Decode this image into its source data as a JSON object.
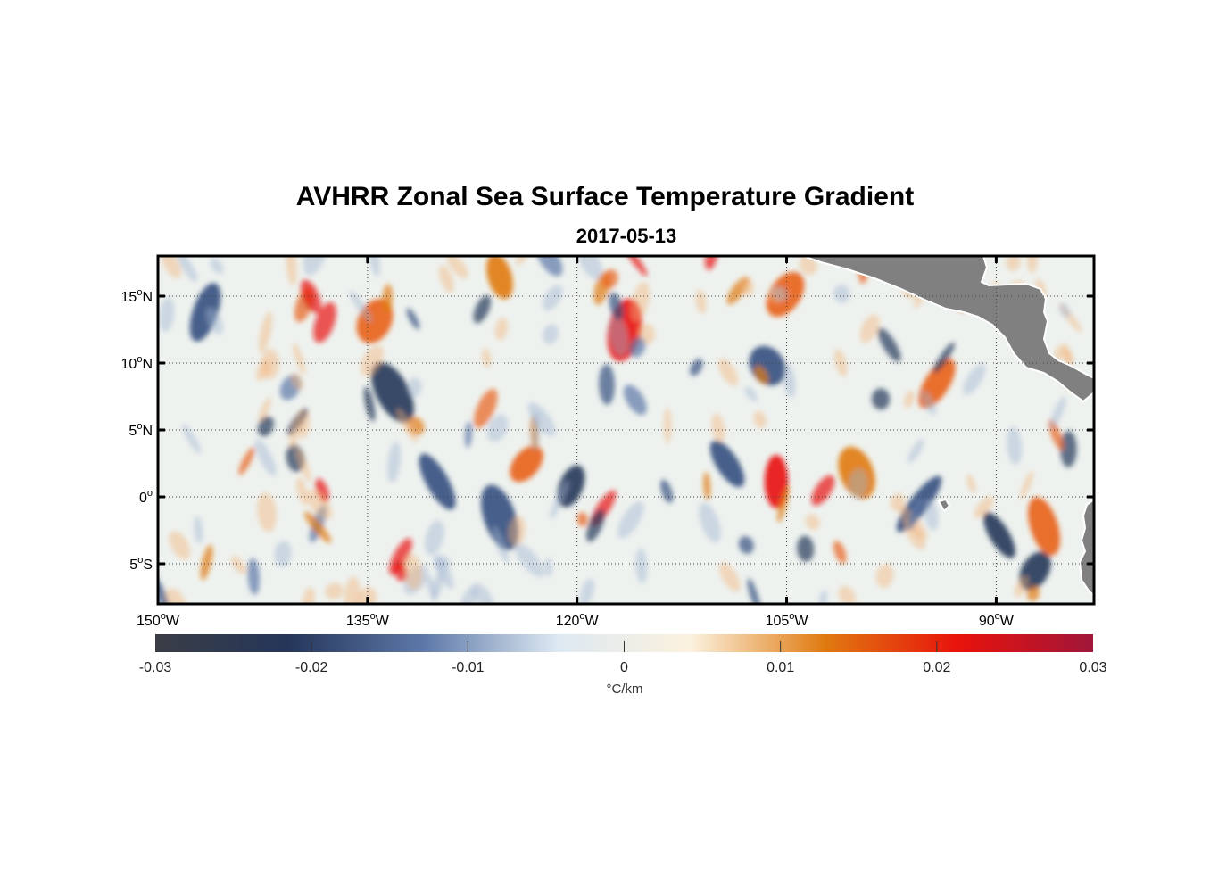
{
  "title": "AVHRR Zonal Sea Surface Temperature Gradient",
  "subtitle": "2017-05-13",
  "map": {
    "lon_range": [
      -150,
      -83
    ],
    "lat_range": [
      -8,
      18
    ],
    "x_ticks": [
      {
        "value": -150,
        "num": "150",
        "hem": "W"
      },
      {
        "value": -135,
        "num": "135",
        "hem": "W"
      },
      {
        "value": -120,
        "num": "120",
        "hem": "W"
      },
      {
        "value": -105,
        "num": "105",
        "hem": "W"
      },
      {
        "value": -90,
        "num": "90",
        "hem": "W"
      }
    ],
    "y_ticks": [
      {
        "value": 15,
        "num": "15",
        "hem": "N"
      },
      {
        "value": 10,
        "num": "10",
        "hem": "N"
      },
      {
        "value": 5,
        "num": "5",
        "hem": "N"
      },
      {
        "value": 0,
        "num": "0",
        "hem": ""
      },
      {
        "value": -5,
        "num": "5",
        "hem": "S"
      }
    ],
    "land_color": "#808080",
    "ocean_color": "#eef2ef"
  },
  "colorbar": {
    "min": -0.03,
    "max": 0.03,
    "ticks": [
      "-0.03",
      "-0.02",
      "-0.01",
      "0",
      "0.01",
      "0.02",
      "0.03"
    ],
    "units": "°C/km",
    "colors": [
      "#3a3d45",
      "#25365a",
      "#5d78a8",
      "#dde9f2",
      "#fbf1de",
      "#e07a10",
      "#e8120c",
      "#a0163a"
    ]
  }
}
